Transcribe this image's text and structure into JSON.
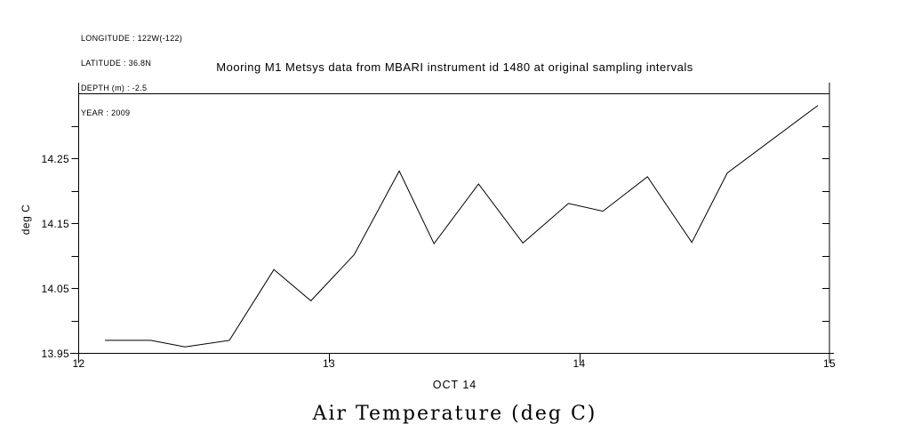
{
  "figure": {
    "background": "#ffffff",
    "foreground": "#000000"
  },
  "metadata_lines": [
    "LONGITUDE : 122W(-122)",
    "LATITUDE : 36.8N",
    "DEPTH (m) : -2.5",
    "YEAR : 2009"
  ],
  "chart_data": {
    "type": "line",
    "title": "Mooring M1 Metsys data from MBARI instrument id 1480 at original sampling intervals",
    "xlabel": "OCT 14",
    "ylabel": "deg C",
    "bottom_title": "Air Temperature (deg C)",
    "xlim": [
      12,
      15
    ],
    "ylim": [
      13.95,
      14.35
    ],
    "grid": false,
    "legend": null,
    "axis_color": "#000000",
    "line_color": "#000000",
    "x_ticks": [
      {
        "v": 12,
        "label": "12"
      },
      {
        "v": 13,
        "label": "13"
      },
      {
        "v": 14,
        "label": "14"
      },
      {
        "v": 15,
        "label": "15"
      }
    ],
    "y_ticks": [
      {
        "v": 13.95,
        "label": "13.95"
      },
      {
        "v": 14.0,
        "label": ""
      },
      {
        "v": 14.05,
        "label": "14.05"
      },
      {
        "v": 14.1,
        "label": ""
      },
      {
        "v": 14.15,
        "label": "14.15"
      },
      {
        "v": 14.2,
        "label": ""
      },
      {
        "v": 14.25,
        "label": "14.25"
      },
      {
        "v": 14.3,
        "label": ""
      }
    ],
    "series": [
      {
        "name": "air_temperature_deg_c",
        "x": [
          12.105,
          12.288,
          12.425,
          12.602,
          12.78,
          12.928,
          13.101,
          13.281,
          13.42,
          13.598,
          13.775,
          13.957,
          14.095,
          14.273,
          14.45,
          14.592,
          14.954
        ],
        "y": [
          13.97,
          13.97,
          13.96,
          13.97,
          14.079,
          14.031,
          14.102,
          14.231,
          14.119,
          14.211,
          14.12,
          14.181,
          14.169,
          14.222,
          14.121,
          14.228,
          14.332
        ]
      }
    ]
  }
}
